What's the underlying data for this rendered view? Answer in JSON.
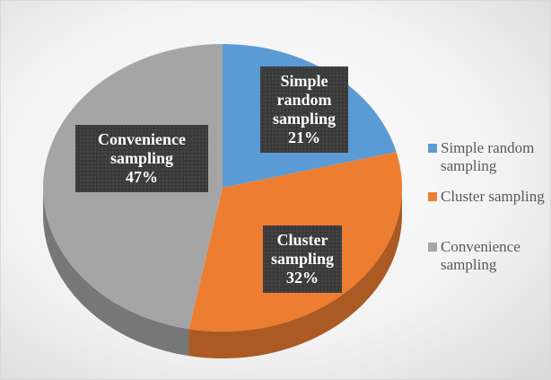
{
  "chart_data": {
    "type": "pie3d",
    "categories": [
      "Simple random sampling",
      "Cluster sampling",
      "Convenience sampling"
    ],
    "values": [
      21,
      32,
      47
    ],
    "value_labels": [
      "21%",
      "32%",
      "47%"
    ],
    "colors": [
      "#5b9bd5",
      "#ed7d31",
      "#a5a5a5"
    ],
    "legend": "right"
  }
}
